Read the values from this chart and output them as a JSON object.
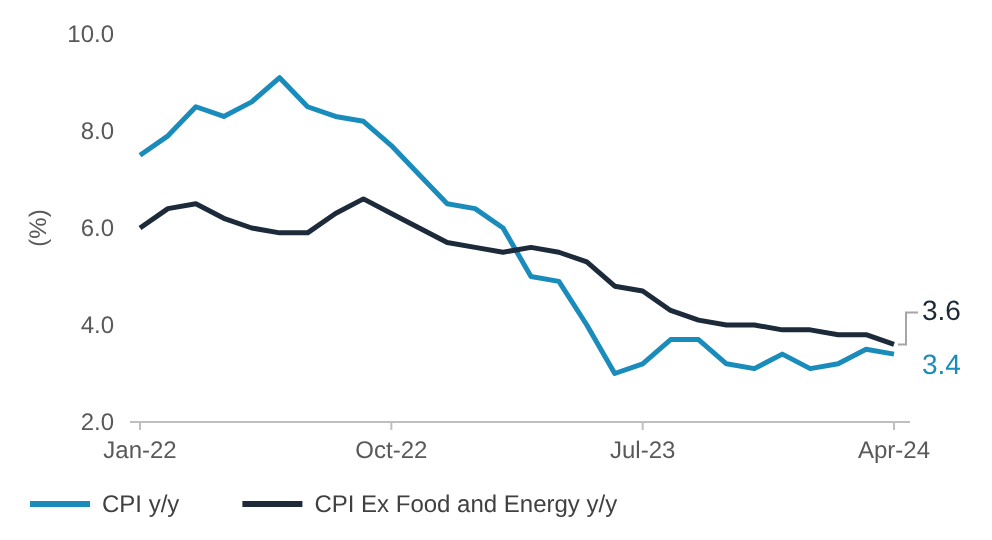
{
  "chart_data": {
    "type": "line",
    "ylabel": "(%)",
    "categories": [
      "Jan-22",
      null,
      null,
      null,
      null,
      null,
      null,
      null,
      null,
      "Oct-22",
      null,
      null,
      null,
      null,
      null,
      null,
      null,
      null,
      "Jul-23",
      null,
      null,
      null,
      null,
      null,
      null,
      null,
      null,
      "Apr-24"
    ],
    "series": [
      {
        "name": "CPI y/y",
        "color": "#1a8cbc",
        "values": [
          7.5,
          7.9,
          8.5,
          8.3,
          8.6,
          9.1,
          8.5,
          8.3,
          8.2,
          7.7,
          7.1,
          6.5,
          6.4,
          6.0,
          5.0,
          4.9,
          4.0,
          3.0,
          3.2,
          3.7,
          3.7,
          3.2,
          3.1,
          3.4,
          3.1,
          3.2,
          3.5,
          3.4
        ]
      },
      {
        "name": "CPI Ex Food and Energy y/y",
        "color": "#1c2a3a",
        "values": [
          6.0,
          6.4,
          6.5,
          6.2,
          6.0,
          5.9,
          5.9,
          6.3,
          6.6,
          6.3,
          6.0,
          5.7,
          5.6,
          5.5,
          5.6,
          5.5,
          5.3,
          4.8,
          4.7,
          4.3,
          4.1,
          4.0,
          4.0,
          3.9,
          3.9,
          3.8,
          3.8,
          3.6
        ]
      }
    ],
    "ylim": [
      2,
      10
    ],
    "yticks": [
      {
        "value": 2,
        "label": "2.0"
      },
      {
        "value": 4,
        "label": "4.0"
      },
      {
        "value": 6,
        "label": "6.0"
      },
      {
        "value": 8,
        "label": "8.0"
      },
      {
        "value": 10,
        "label": "10.0"
      }
    ],
    "grid": false,
    "legend": "bottom",
    "marker": "none",
    "line_style": "solid",
    "annotations": [
      {
        "text": "3.6",
        "x": "Apr-24",
        "y": 3.6
      },
      {
        "text": "3.4",
        "x": "Apr-24",
        "y": 3.4
      }
    ]
  }
}
